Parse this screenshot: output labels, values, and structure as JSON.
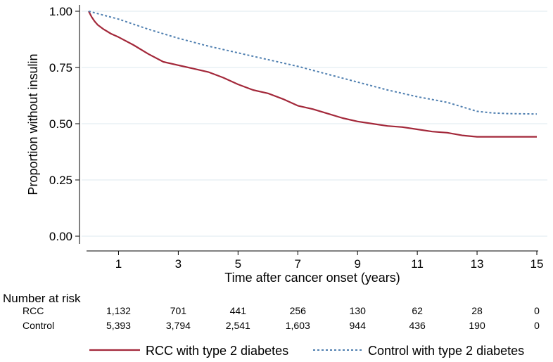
{
  "chart_data": {
    "type": "line",
    "title": "",
    "xlabel": "Time after cancer onset (years)",
    "ylabel": "Proportion without insulin",
    "xlim": [
      0,
      15
    ],
    "ylim": [
      0,
      1
    ],
    "grid": true,
    "x_ticks": [
      1,
      3,
      5,
      7,
      9,
      11,
      13,
      15
    ],
    "y_ticks": [
      {
        "value": 0.0,
        "label": "0.00"
      },
      {
        "value": 0.25,
        "label": "0.25"
      },
      {
        "value": 0.5,
        "label": "0.50"
      },
      {
        "value": 0.75,
        "label": "0.75"
      },
      {
        "value": 1.0,
        "label": "1.00"
      }
    ],
    "series": [
      {
        "name": "RCC with type 2 diabetes",
        "color": "#A3283A",
        "style": "solid",
        "points": [
          [
            0,
            1.0
          ],
          [
            0.1,
            0.975
          ],
          [
            0.2,
            0.955
          ],
          [
            0.3,
            0.94
          ],
          [
            0.5,
            0.92
          ],
          [
            0.75,
            0.9
          ],
          [
            1,
            0.885
          ],
          [
            1.5,
            0.85
          ],
          [
            2,
            0.81
          ],
          [
            2.5,
            0.775
          ],
          [
            3,
            0.76
          ],
          [
            3.5,
            0.745
          ],
          [
            4,
            0.73
          ],
          [
            4.5,
            0.705
          ],
          [
            5,
            0.675
          ],
          [
            5.5,
            0.65
          ],
          [
            6,
            0.635
          ],
          [
            6.5,
            0.61
          ],
          [
            7,
            0.58
          ],
          [
            7.5,
            0.565
          ],
          [
            8,
            0.545
          ],
          [
            8.5,
            0.525
          ],
          [
            9,
            0.51
          ],
          [
            9.5,
            0.5
          ],
          [
            10,
            0.49
          ],
          [
            10.5,
            0.485
          ],
          [
            11,
            0.475
          ],
          [
            11.5,
            0.465
          ],
          [
            12,
            0.46
          ],
          [
            12.5,
            0.448
          ],
          [
            13,
            0.442
          ],
          [
            14,
            0.442
          ],
          [
            15,
            0.442
          ]
        ]
      },
      {
        "name": "Control with type 2 diabetes",
        "color": "#4F7FB0",
        "style": "dashed",
        "points": [
          [
            0,
            1.0
          ],
          [
            1,
            0.965
          ],
          [
            2,
            0.92
          ],
          [
            3,
            0.88
          ],
          [
            4,
            0.845
          ],
          [
            5,
            0.815
          ],
          [
            6,
            0.785
          ],
          [
            7,
            0.755
          ],
          [
            8,
            0.72
          ],
          [
            9,
            0.685
          ],
          [
            10,
            0.65
          ],
          [
            11,
            0.62
          ],
          [
            12,
            0.595
          ],
          [
            12.5,
            0.575
          ],
          [
            13,
            0.555
          ],
          [
            13.5,
            0.548
          ],
          [
            14,
            0.545
          ],
          [
            15,
            0.543
          ]
        ]
      }
    ]
  },
  "risk_table": {
    "title": "Number at risk",
    "rows": [
      {
        "label": "RCC",
        "values": [
          "1,132",
          "701",
          "441",
          "256",
          "130",
          "62",
          "28",
          "0"
        ]
      },
      {
        "label": "Control",
        "values": [
          "5,393",
          "3,794",
          "2,541",
          "1,603",
          "944",
          "436",
          "190",
          "0"
        ]
      }
    ]
  },
  "legend": {
    "position": "bottom",
    "items": [
      {
        "label": "RCC with type 2 diabetes",
        "color": "#A3283A",
        "style": "solid"
      },
      {
        "label": "Control with type 2 diabetes",
        "color": "#4F7FB0",
        "style": "dashed"
      }
    ]
  },
  "colors": {
    "grid": "#E4EEF2",
    "axis": "#000000"
  }
}
